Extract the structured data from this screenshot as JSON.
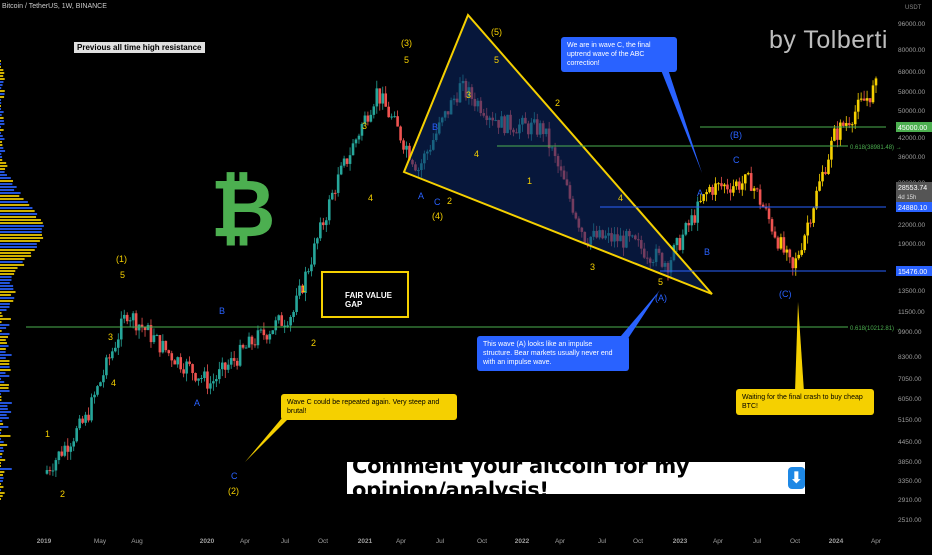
{
  "header": {
    "symbol": "Bitcoin / TetherUS, 1W, BINANCE",
    "watermark": "by Tolberti",
    "currency": "USDT"
  },
  "labels": {
    "prev_ath": "Previous all time high resistance",
    "fair_value_gap": "FAIR VALUE GAP",
    "banner": "Comment your altcoin for my opinion/analysis!",
    "banner_icon": "⬇",
    "note_wave_c": "We are in wave C, the final uptrend wave of the ABC correction!",
    "note_wave_a": "This wave (A) looks like an impulse structure. Bear markets usually never end with an impulse wave.",
    "note_repeat": "Wave C could be repeated again.  Very steep and brutal!",
    "note_waiting": "Waiting for the final crash to buy cheap BTC!",
    "btc_logo": "₿"
  },
  "price_axis": [
    "96000.00",
    "80000.00",
    "68000.00",
    "58000.00",
    "50000.00",
    "42000.00",
    "36000.00",
    "30000.00",
    "25500.00",
    "22000.00",
    "19000.00",
    "16000.00",
    "13500.00",
    "11500.00",
    "9900.00",
    "8300.00",
    "7050.00",
    "6050.00",
    "5150.00",
    "4450.00",
    "3850.00",
    "3350.00",
    "2910.00",
    "2510.00"
  ],
  "badges": {
    "level_45000": "45000.00",
    "fib_38981": "0.618(38981.48) →",
    "price_28553": "28553.74",
    "countdown": "4d 15h",
    "level_24880": "24880.10",
    "level_15476": "15476.00",
    "fib_10212": "0.618(10212.81) →"
  },
  "time_axis": [
    "2019",
    "May",
    "Aug",
    "2020",
    "Apr",
    "Jul",
    "Oct",
    "2021",
    "Apr",
    "Jul",
    "Oct",
    "2022",
    "Apr",
    "Jul",
    "Oct",
    "2023",
    "Apr",
    "Jul",
    "Oct",
    "2024",
    "Apr"
  ],
  "wave_labels": {
    "w1_a": "1",
    "w2_a": "2",
    "w3_a": "3",
    "w4_a": "4",
    "w5_a": "5",
    "W1": "(1)",
    "A_a": "A",
    "B_a": "B",
    "C_a": "C",
    "W2": "(2)",
    "w1_b": "1",
    "w2_b": "2",
    "w3_b": "3",
    "w4_b": "4",
    "w5_b": "5",
    "W3": "(3)",
    "A_b": "A",
    "B_b": "B",
    "C_b": "C",
    "W4": "(4)",
    "w3_c": "3",
    "w4_c": "4",
    "w5_c": "5",
    "W5": "(5)",
    "w1_d": "1",
    "w2_d": "2",
    "w3_d": "3",
    "w4_d": "4",
    "w5_d": "5",
    "WA": "(A)",
    "A_c": "A",
    "B_c": "B",
    "C_c": "C",
    "WB": "(B)",
    "WC": "(C)"
  },
  "colors": {
    "bull": "#26a69a",
    "bear": "#ef5350",
    "yellow": "#f5d000",
    "blue": "#2962ff",
    "fib": "#4caf50",
    "grid": "#131722"
  },
  "chart_data": {
    "type": "candlestick",
    "title": "Bitcoin / TetherUS, 1W, BINANCE",
    "y_scale": "log",
    "ylim": [
      2400,
      100000
    ],
    "x": [
      "2019",
      "2019-05",
      "2019-08",
      "2020",
      "2020-04",
      "2020-07",
      "2020-10",
      "2021",
      "2021-04",
      "2021-07",
      "2021-10",
      "2022",
      "2022-04",
      "2022-07",
      "2022-10",
      "2023",
      "2023-04",
      "2023-07",
      "2023-10",
      "2024",
      "2024-04"
    ],
    "path_close": [
      3500,
      5200,
      11500,
      8500,
      6800,
      9200,
      11500,
      29000,
      58000,
      33000,
      60000,
      46000,
      44000,
      20000,
      19500,
      16500,
      28500,
      30000,
      15476,
      42000,
      60000
    ],
    "horizontal_levels": [
      45000,
      38981.48,
      24880.1,
      15476.0,
      10212.81
    ],
    "current_price": 28553.74,
    "grid": false
  }
}
